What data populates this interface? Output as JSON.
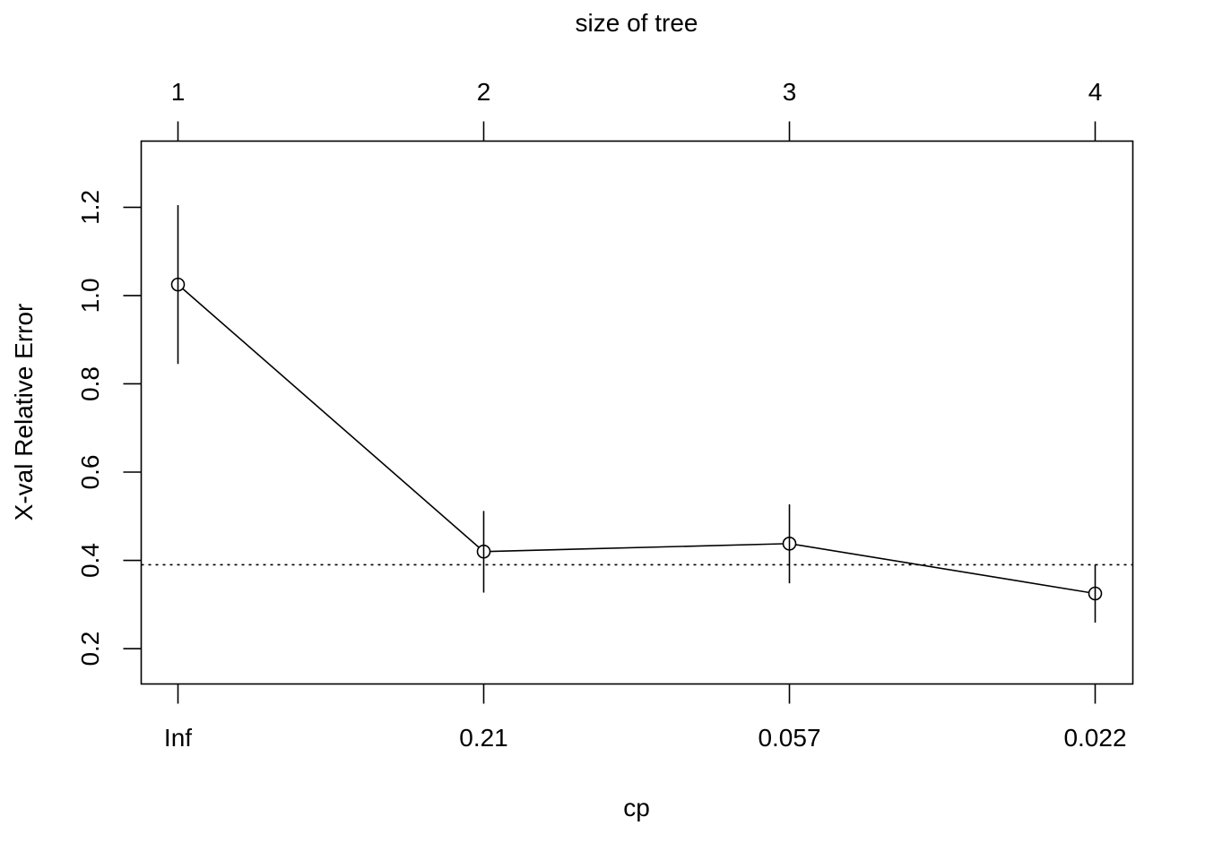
{
  "chart_data": {
    "type": "line",
    "title": "",
    "top_axis_label": "size of tree",
    "xlabel": "cp",
    "ylabel": "X-val Relative Error",
    "bottom_tick_labels": [
      "Inf",
      "0.21",
      "0.057",
      "0.022"
    ],
    "top_tick_labels": [
      "1",
      "2",
      "3",
      "4"
    ],
    "y_ticks": [
      0.2,
      0.4,
      0.6,
      0.8,
      1.0,
      1.2
    ],
    "y_tick_labels": [
      "0.2",
      "0.4",
      "0.6",
      "0.8",
      "1.0",
      "1.2"
    ],
    "ylim": [
      0.12,
      1.35
    ],
    "series": [
      {
        "size": [
          1,
          2,
          3,
          4
        ],
        "values": [
          1.025,
          0.42,
          0.438,
          0.325
        ],
        "error_low": [
          0.845,
          0.327,
          0.348,
          0.259
        ],
        "error_high": [
          1.205,
          0.512,
          0.527,
          0.391
        ]
      }
    ],
    "reference_line": {
      "value": 0.39,
      "style": "dotted"
    },
    "grid": false,
    "legend": false
  }
}
